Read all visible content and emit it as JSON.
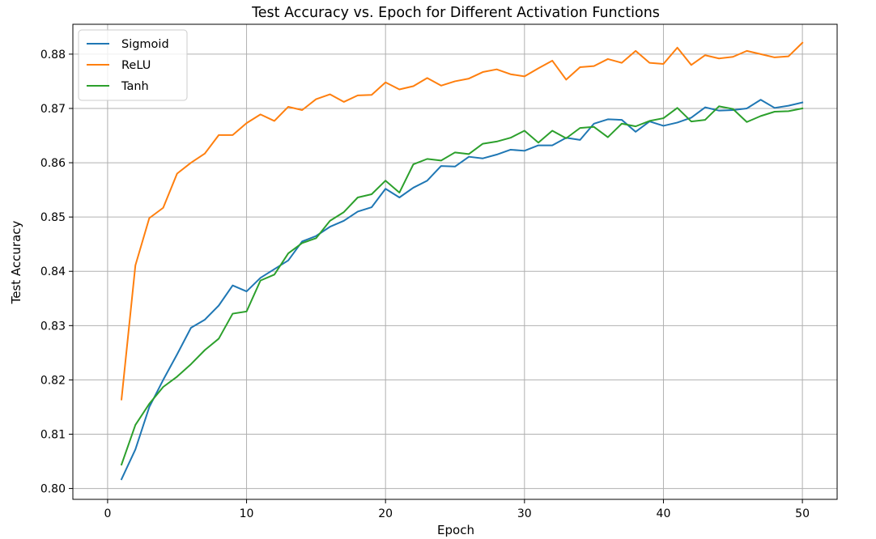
{
  "chart_data": {
    "type": "line",
    "title": "Test Accuracy vs. Epoch for Different Activation Functions",
    "xlabel": "Epoch",
    "ylabel": "Test Accuracy",
    "xlim": [
      -2.5,
      52.5
    ],
    "ylim": [
      0.798,
      0.8855
    ],
    "xticks": [
      0,
      10,
      20,
      30,
      40,
      50
    ],
    "xtick_labels": [
      "0",
      "10",
      "20",
      "30",
      "40",
      "50"
    ],
    "yticks": [
      0.8,
      0.81,
      0.82,
      0.83,
      0.84,
      0.85,
      0.86,
      0.87,
      0.88
    ],
    "ytick_labels": [
      "0.80",
      "0.81",
      "0.82",
      "0.83",
      "0.84",
      "0.85",
      "0.86",
      "0.87",
      "0.88"
    ],
    "grid": true,
    "legend_position": "top-left",
    "x": [
      1,
      2,
      3,
      4,
      5,
      6,
      7,
      8,
      9,
      10,
      11,
      12,
      13,
      14,
      15,
      16,
      17,
      18,
      19,
      20,
      21,
      22,
      23,
      24,
      25,
      26,
      27,
      28,
      29,
      30,
      31,
      32,
      33,
      34,
      35,
      36,
      37,
      38,
      39,
      40,
      41,
      42,
      43,
      44,
      45,
      46,
      47,
      48,
      49,
      50
    ],
    "series": [
      {
        "name": "Sigmoid",
        "color": "#1f77b4",
        "values": [
          0.8017,
          0.8072,
          0.815,
          0.82,
          0.8247,
          0.8296,
          0.8311,
          0.8337,
          0.8374,
          0.8363,
          0.8388,
          0.8404,
          0.842,
          0.8455,
          0.8465,
          0.8482,
          0.8493,
          0.851,
          0.8518,
          0.8552,
          0.8536,
          0.8554,
          0.8567,
          0.8594,
          0.8593,
          0.8611,
          0.8608,
          0.8615,
          0.8624,
          0.8622,
          0.8632,
          0.8632,
          0.8646,
          0.8642,
          0.8672,
          0.868,
          0.8679,
          0.8657,
          0.8676,
          0.8668,
          0.8674,
          0.8683,
          0.8702,
          0.8696,
          0.8697,
          0.87,
          0.8716,
          0.8701,
          0.8705,
          0.8711
        ]
      },
      {
        "name": "ReLU",
        "color": "#ff7f0e",
        "values": [
          0.8164,
          0.8411,
          0.8498,
          0.8517,
          0.858,
          0.86,
          0.8617,
          0.8651,
          0.8651,
          0.8673,
          0.8689,
          0.8677,
          0.8703,
          0.8697,
          0.8717,
          0.8726,
          0.8712,
          0.8724,
          0.8725,
          0.8748,
          0.8735,
          0.8741,
          0.8756,
          0.8742,
          0.875,
          0.8755,
          0.8767,
          0.8772,
          0.8763,
          0.8759,
          0.8774,
          0.8788,
          0.8753,
          0.8776,
          0.8778,
          0.8791,
          0.8784,
          0.8806,
          0.8784,
          0.8782,
          0.8812,
          0.878,
          0.8798,
          0.8792,
          0.8795,
          0.8806,
          0.88,
          0.8794,
          0.8796,
          0.8821
        ]
      },
      {
        "name": "Tanh",
        "color": "#2ca02c",
        "values": [
          0.8044,
          0.8117,
          0.8156,
          0.8187,
          0.8206,
          0.8229,
          0.8255,
          0.8276,
          0.8322,
          0.8326,
          0.8383,
          0.8394,
          0.8433,
          0.8452,
          0.8461,
          0.8493,
          0.8509,
          0.8536,
          0.8542,
          0.8567,
          0.8545,
          0.8597,
          0.8607,
          0.8604,
          0.8619,
          0.8616,
          0.8635,
          0.8639,
          0.8646,
          0.8659,
          0.8637,
          0.8659,
          0.8645,
          0.8664,
          0.8666,
          0.8647,
          0.8672,
          0.8667,
          0.8677,
          0.8682,
          0.8701,
          0.8676,
          0.8679,
          0.8704,
          0.8699,
          0.8675,
          0.8686,
          0.8694,
          0.8695,
          0.87
        ]
      }
    ]
  }
}
